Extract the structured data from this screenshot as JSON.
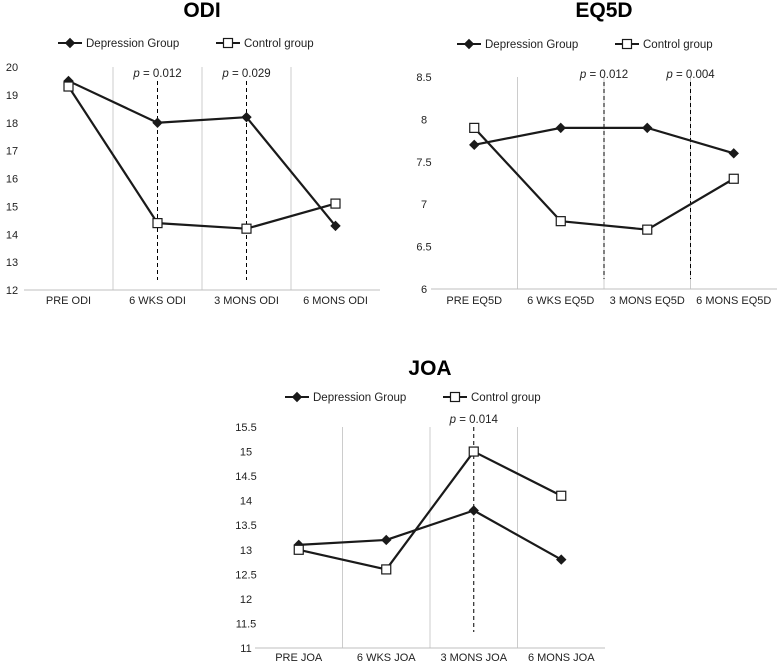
{
  "colors": {
    "series_line": "#1a1a1a",
    "grid": "#cccccc",
    "axis": "#bfbfbf",
    "marker_fill_open": "#ffffff"
  },
  "chart_data": [
    {
      "type": "line",
      "title": "ODI",
      "categories": [
        "PRE ODI",
        "6 WKS ODI",
        "3 MONS ODI",
        "6 MONS ODI"
      ],
      "ylim": [
        12,
        20
      ],
      "yticks": [
        12,
        13,
        14,
        15,
        16,
        17,
        18,
        19,
        20
      ],
      "legend_position": "top",
      "series": [
        {
          "name": "Depression Group",
          "marker": "diamond",
          "values": [
            19.5,
            18.0,
            18.2,
            14.3
          ]
        },
        {
          "name": "Control group",
          "marker": "square",
          "values": [
            19.3,
            14.4,
            14.2,
            15.1
          ]
        }
      ],
      "annotations": [
        {
          "category_index": 1,
          "prefix": "p",
          "label": " = 0.012"
        },
        {
          "category_index": 2,
          "prefix": "p",
          "label": " = 0.029"
        }
      ]
    },
    {
      "type": "line",
      "title": "EQ5D",
      "categories": [
        "PRE EQ5D",
        "6 WKS EQ5D",
        "3 MONS EQ5D",
        "6 MONS EQ5D"
      ],
      "ylim": [
        6,
        8.5
      ],
      "yticks": [
        6,
        6.5,
        7,
        7.5,
        8,
        8.5
      ],
      "legend_position": "top",
      "series": [
        {
          "name": "Depression Group",
          "marker": "diamond",
          "values": [
            7.7,
            7.9,
            7.9,
            7.6
          ]
        },
        {
          "name": "Control group",
          "marker": "square",
          "values": [
            7.9,
            6.8,
            6.7,
            7.3
          ]
        }
      ],
      "annotations": [
        {
          "category_index": 1.5,
          "prefix": "p",
          "label": " = 0.012"
        },
        {
          "category_index": 2.5,
          "prefix": "p",
          "label": " = 0.004"
        }
      ]
    },
    {
      "type": "line",
      "title": "JOA",
      "categories": [
        "PRE JOA",
        "6 WKS JOA",
        "3 MONS JOA",
        "6 MONS JOA"
      ],
      "ylim": [
        11,
        15.5
      ],
      "yticks": [
        11,
        11.5,
        12,
        12.5,
        13,
        13.5,
        14,
        14.5,
        15,
        15.5
      ],
      "legend_position": "top",
      "series": [
        {
          "name": "Depression Group",
          "marker": "diamond",
          "values": [
            13.1,
            13.2,
            13.8,
            12.8
          ]
        },
        {
          "name": "Control group",
          "marker": "square",
          "values": [
            13.0,
            12.6,
            15.0,
            14.1
          ]
        }
      ],
      "annotations": [
        {
          "category_index": 2,
          "prefix": "p",
          "label": " = 0.014"
        }
      ]
    }
  ]
}
